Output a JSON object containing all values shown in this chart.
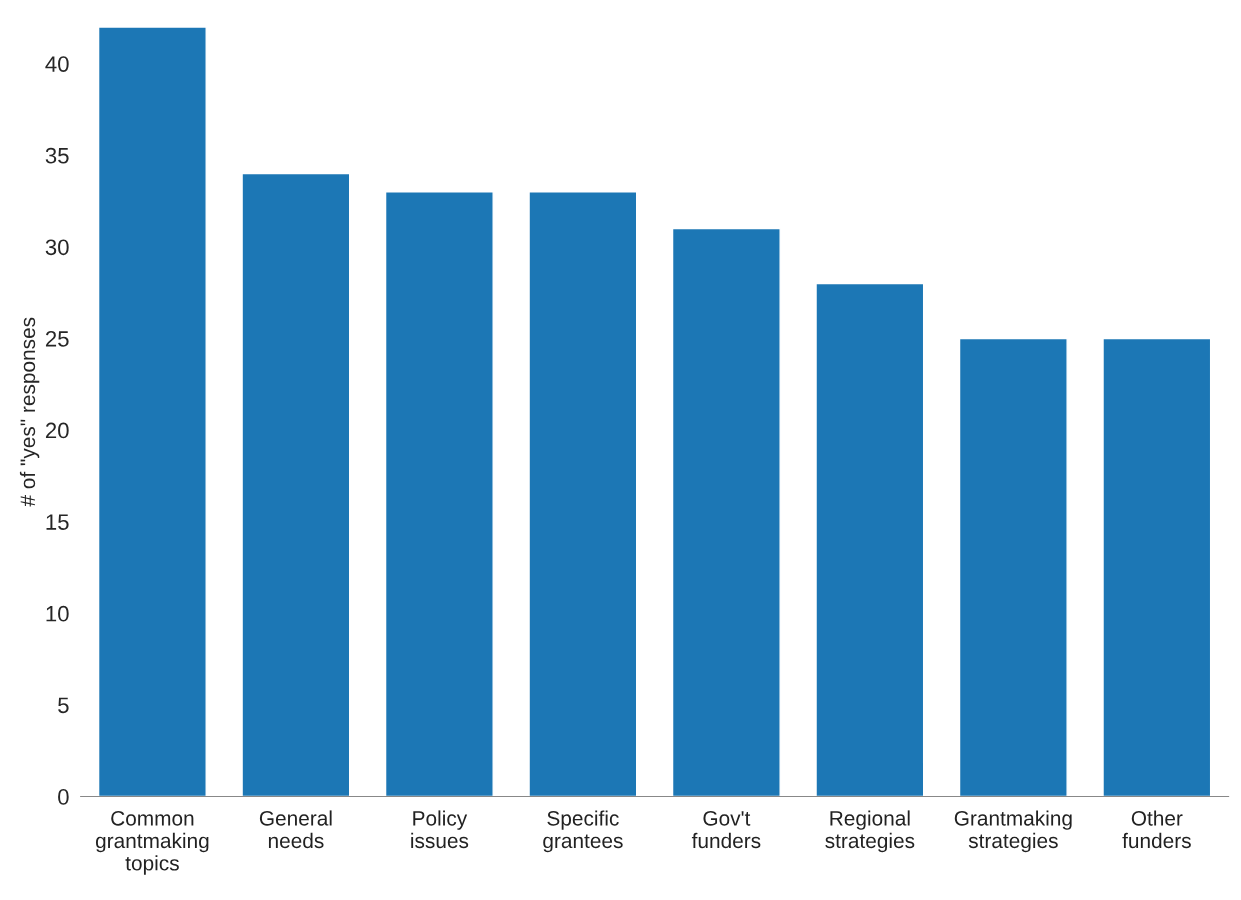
{
  "chart_data": {
    "type": "bar",
    "ylabel": "# of \"yes\" responses",
    "categories": [
      "Common grantmaking topics",
      "General needs",
      "Policy issues",
      "Specific grantees",
      "Gov't funders",
      "Regional strategies",
      "Grantmaking strategies",
      "Other funders"
    ],
    "values": [
      42,
      34,
      33,
      33,
      31,
      28,
      25,
      25
    ],
    "color": "#1c77b5",
    "ylim": [
      0,
      42
    ],
    "yticks": [
      0,
      5,
      10,
      15,
      20,
      25,
      30,
      35,
      40
    ],
    "grid": false
  }
}
